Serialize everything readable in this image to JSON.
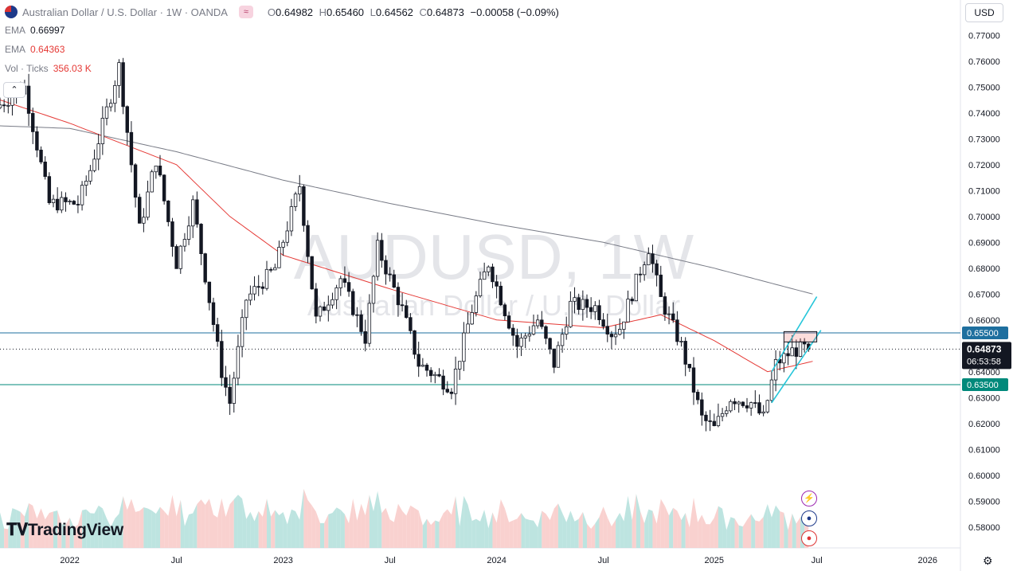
{
  "header": {
    "title": "Australian Dollar / U.S. Dollar · 1W · OANDA",
    "o_label": "O",
    "o": "0.64982",
    "h_label": "H",
    "h": "0.65460",
    "l_label": "L",
    "l": "0.64562",
    "c_label": "C",
    "c": "0.64873",
    "change": "−0.00058 (−0.09%)"
  },
  "indicators": [
    {
      "name": "EMA",
      "value": "0.66997",
      "color": "#787b86"
    },
    {
      "name": "EMA",
      "value": "0.64363",
      "color": "#e53935"
    },
    {
      "name": "Vol · Ticks",
      "value": "356.03 K",
      "color": "#e53935"
    }
  ],
  "currency_button": "USD",
  "watermark": {
    "symbol": "AUDUSD, 1W",
    "name": "Australian Dollar / U.S. Dollar"
  },
  "logo_text": "TradingView",
  "colors": {
    "up": "#26a69a",
    "down": "#ef5350",
    "candle": "#131722",
    "support": "#00897b",
    "resistance": "#1e6f9f",
    "channel": "#26c6da",
    "ema_slow": "#787b86",
    "ema_fast": "#e53935"
  },
  "chart_data": {
    "type": "candlestick",
    "symbol": "AUDUSD",
    "timeframe": "1W",
    "ylim": [
      0.575,
      0.775
    ],
    "yticks": [
      "0.77000",
      "0.76000",
      "0.75000",
      "0.74000",
      "0.73000",
      "0.72000",
      "0.71000",
      "0.70000",
      "0.69000",
      "0.68000",
      "0.67000",
      "0.66000",
      "0.65000",
      "0.64000",
      "0.63000",
      "0.62000",
      "0.61000",
      "0.60000",
      "0.59000",
      "0.58000"
    ],
    "xticks": [
      {
        "label": "2022",
        "date": "2022-01-03"
      },
      {
        "label": "Jul",
        "date": "2022-07-04"
      },
      {
        "label": "2023",
        "date": "2023-01-02"
      },
      {
        "label": "Jul",
        "date": "2023-07-03"
      },
      {
        "label": "2024",
        "date": "2024-01-01"
      },
      {
        "label": "Jul",
        "date": "2024-07-01"
      },
      {
        "label": "2025",
        "date": "2025-01-06"
      },
      {
        "label": "Jul",
        "date": "2025-06-30"
      },
      {
        "label": "2026",
        "date": "2026-01-05"
      }
    ],
    "x_range": [
      "2021-09-06",
      "2026-03-02"
    ],
    "price_anchors": [
      [
        "2021-09-06",
        0.742
      ],
      [
        "2021-10-25",
        0.75
      ],
      [
        "2021-12-06",
        0.705
      ],
      [
        "2022-01-24",
        0.705
      ],
      [
        "2022-02-14",
        0.718
      ],
      [
        "2022-04-04",
        0.758
      ],
      [
        "2022-05-09",
        0.695
      ],
      [
        "2022-06-06",
        0.722
      ],
      [
        "2022-07-11",
        0.682
      ],
      [
        "2022-08-08",
        0.705
      ],
      [
        "2022-09-26",
        0.64
      ],
      [
        "2022-10-10",
        0.628
      ],
      [
        "2022-11-07",
        0.668
      ],
      [
        "2022-12-26",
        0.68
      ],
      [
        "2023-02-06",
        0.712
      ],
      [
        "2023-03-06",
        0.66
      ],
      [
        "2023-04-17",
        0.676
      ],
      [
        "2023-05-29",
        0.653
      ],
      [
        "2023-06-19",
        0.688
      ],
      [
        "2023-07-31",
        0.664
      ],
      [
        "2023-08-28",
        0.643
      ],
      [
        "2023-10-23",
        0.634
      ],
      [
        "2023-11-27",
        0.664
      ],
      [
        "2023-12-25",
        0.682
      ],
      [
        "2024-02-12",
        0.65
      ],
      [
        "2024-03-18",
        0.66
      ],
      [
        "2024-04-15",
        0.643
      ],
      [
        "2024-05-13",
        0.666
      ],
      [
        "2024-06-24",
        0.665
      ],
      [
        "2024-07-22",
        0.655
      ],
      [
        "2024-08-05",
        0.657
      ],
      [
        "2024-09-23",
        0.688
      ],
      [
        "2024-10-14",
        0.668
      ],
      [
        "2024-11-18",
        0.65
      ],
      [
        "2024-12-23",
        0.622
      ],
      [
        "2025-01-13",
        0.618
      ],
      [
        "2025-02-10",
        0.63
      ],
      [
        "2025-03-17",
        0.628
      ],
      [
        "2025-04-07",
        0.622
      ],
      [
        "2025-04-28",
        0.643
      ],
      [
        "2025-05-26",
        0.648
      ],
      [
        "2025-06-16",
        0.649
      ]
    ],
    "close": 0.64873,
    "ema_slow_last": 0.66997,
    "ema_fast_last": 0.64363,
    "ema_slow_anchors": [
      [
        "2021-09-06",
        0.735
      ],
      [
        "2022-01-03",
        0.734
      ],
      [
        "2022-07-04",
        0.725
      ],
      [
        "2023-01-02",
        0.714
      ],
      [
        "2023-07-03",
        0.705
      ],
      [
        "2024-01-01",
        0.697
      ],
      [
        "2024-07-01",
        0.69
      ],
      [
        "2025-01-06",
        0.68
      ],
      [
        "2025-06-23",
        0.67
      ]
    ],
    "ema_fast_anchors": [
      [
        "2021-09-06",
        0.745
      ],
      [
        "2022-01-03",
        0.736
      ],
      [
        "2022-07-04",
        0.72
      ],
      [
        "2022-10-03",
        0.7
      ],
      [
        "2023-01-02",
        0.685
      ],
      [
        "2023-07-03",
        0.672
      ],
      [
        "2024-01-01",
        0.66
      ],
      [
        "2024-07-01",
        0.657
      ],
      [
        "2024-10-07",
        0.662
      ],
      [
        "2025-01-06",
        0.652
      ],
      [
        "2025-04-07",
        0.64
      ],
      [
        "2025-06-23",
        0.644
      ]
    ],
    "hlines": [
      {
        "price": 0.655,
        "label": "0.65500"
      },
      {
        "price": 0.635,
        "label": "0.63500"
      }
    ],
    "close_label": "0.64873",
    "countdown": "06:53:58",
    "channel": {
      "upper": [
        [
          "2025-04-14",
          0.64
        ],
        [
          "2025-06-30",
          0.669
        ]
      ],
      "lower": [
        [
          "2025-04-14",
          0.628
        ],
        [
          "2025-07-07",
          0.656
        ]
      ]
    },
    "box": {
      "from": "2025-05-05",
      "to": "2025-06-30",
      "top": 0.6555,
      "bottom": 0.6515
    }
  }
}
